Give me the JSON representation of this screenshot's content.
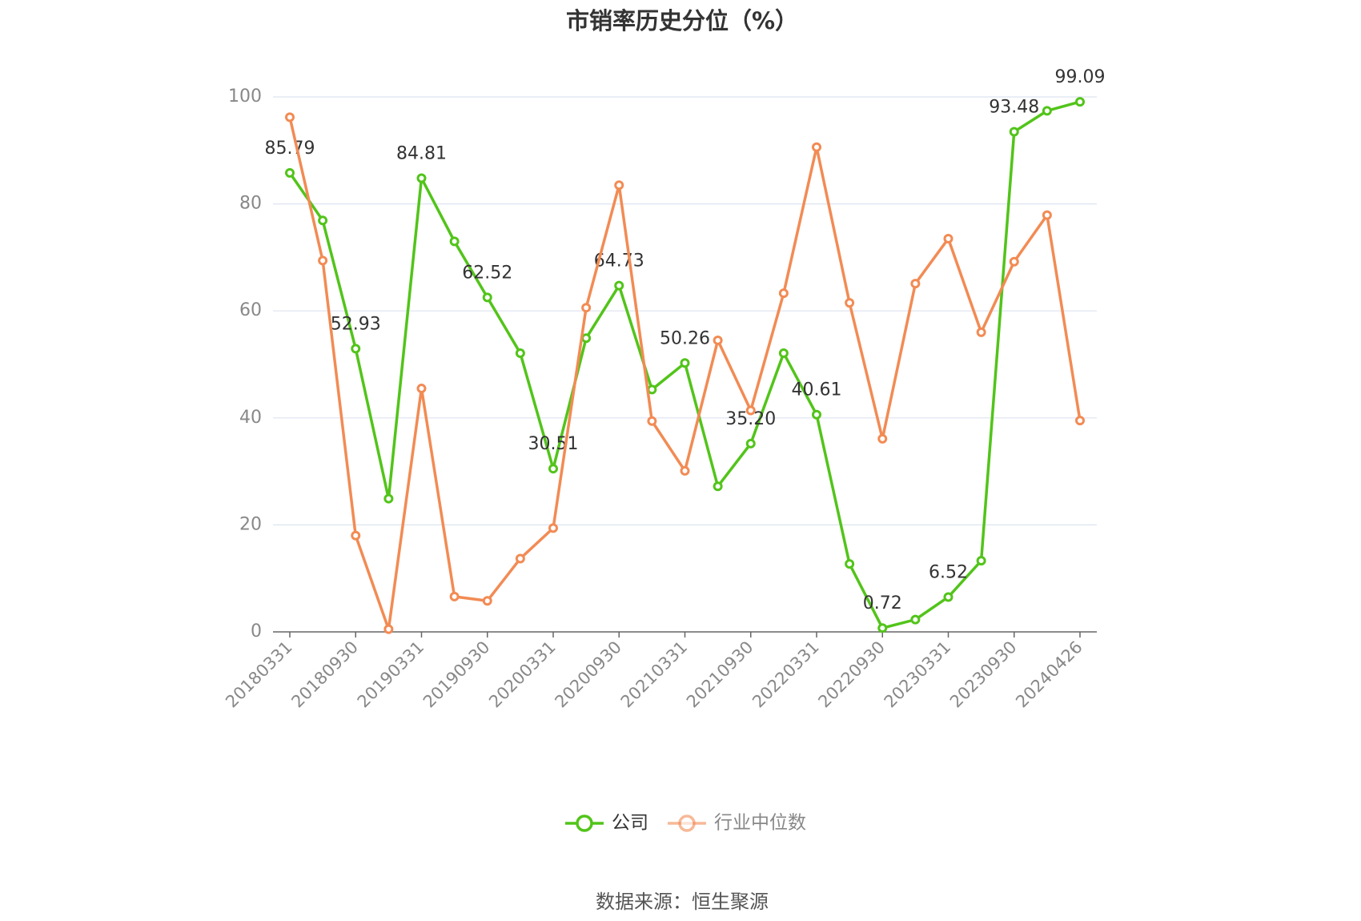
{
  "chart_data": {
    "type": "line",
    "title": "市销率历史分位（%）",
    "source": "数据来源：恒生聚源",
    "categories": [
      "20180331",
      null,
      "20180930",
      null,
      "20190331",
      null,
      "20190930",
      null,
      "20200331",
      null,
      "20200930",
      null,
      "20210331",
      null,
      "20210930",
      null,
      "20220331",
      null,
      "20220930",
      null,
      "20230331",
      null,
      "20230930",
      null,
      "20240426"
    ],
    "series": [
      {
        "name": "公司",
        "color": "#52c41a",
        "values": [
          85.79,
          76.9,
          52.93,
          24.9,
          84.81,
          73.0,
          62.52,
          52.1,
          30.51,
          54.9,
          64.73,
          45.3,
          50.26,
          27.2,
          35.2,
          52.1,
          40.61,
          12.7,
          0.72,
          2.3,
          6.52,
          13.3,
          93.48,
          97.4,
          99.09
        ],
        "value_labels": [
          "85.79",
          null,
          "52.93",
          null,
          "84.81",
          null,
          "62.52",
          null,
          "30.51",
          null,
          "64.73",
          null,
          "50.26",
          null,
          "35.20",
          null,
          "40.61",
          null,
          "0.72",
          null,
          "6.52",
          null,
          "93.48",
          null,
          "99.09"
        ]
      },
      {
        "name": "行业中位数",
        "color": "#f28b54",
        "values": [
          96.2,
          69.4,
          18.0,
          0.5,
          45.5,
          6.6,
          5.8,
          13.7,
          19.4,
          60.6,
          83.5,
          39.4,
          30.1,
          54.5,
          41.4,
          63.3,
          90.6,
          61.5,
          36.1,
          65.1,
          73.5,
          56.0,
          69.2,
          77.9,
          39.5
        ]
      }
    ],
    "ylim": [
      0,
      100
    ],
    "yticks": [
      0,
      20,
      40,
      60,
      80,
      100
    ],
    "grid": true,
    "legend": "bottom"
  }
}
